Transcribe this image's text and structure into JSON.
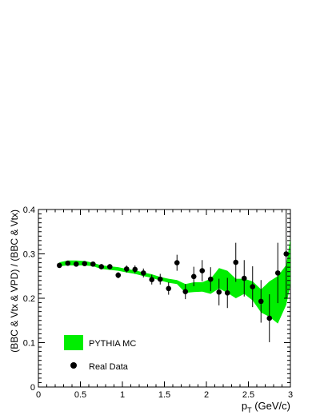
{
  "chart_data": {
    "type": "scatter",
    "xlabel_main": "p",
    "xlabel_sub": "T",
    "xlabel_unit": " (GeV/c)",
    "ylabel": "(BBC & Vtx & VPD) / (BBC & Vtx)",
    "xlim": [
      0,
      3
    ],
    "ylim": [
      0,
      0.4
    ],
    "x_ticks": [
      "0",
      "0.5",
      "1",
      "1.5",
      "2",
      "2.5",
      "3"
    ],
    "y_ticks": [
      "0",
      "0.1",
      "0.2",
      "0.3",
      "0.4"
    ],
    "legend": {
      "placement": "bottom-left",
      "entries": [
        {
          "label": "PYTHIA MC",
          "style": "band",
          "color": "#00ee00"
        },
        {
          "label": "Real Data",
          "style": "marker",
          "color": "#000000"
        }
      ]
    },
    "series": [
      {
        "name": "Real Data",
        "style": "points-with-errors",
        "color": "#000000",
        "points": [
          {
            "x": 0.25,
            "y": 0.274,
            "err": 0.004
          },
          {
            "x": 0.35,
            "y": 0.279,
            "err": 0.004
          },
          {
            "x": 0.45,
            "y": 0.277,
            "err": 0.004
          },
          {
            "x": 0.55,
            "y": 0.278,
            "err": 0.004
          },
          {
            "x": 0.65,
            "y": 0.277,
            "err": 0.005
          },
          {
            "x": 0.75,
            "y": 0.271,
            "err": 0.006
          },
          {
            "x": 0.85,
            "y": 0.271,
            "err": 0.006
          },
          {
            "x": 0.95,
            "y": 0.252,
            "err": 0.007
          },
          {
            "x": 1.05,
            "y": 0.266,
            "err": 0.008
          },
          {
            "x": 1.15,
            "y": 0.265,
            "err": 0.009
          },
          {
            "x": 1.25,
            "y": 0.257,
            "err": 0.01
          },
          {
            "x": 1.35,
            "y": 0.242,
            "err": 0.011
          },
          {
            "x": 1.45,
            "y": 0.243,
            "err": 0.012
          },
          {
            "x": 1.55,
            "y": 0.222,
            "err": 0.014
          },
          {
            "x": 1.65,
            "y": 0.28,
            "err": 0.018
          },
          {
            "x": 1.75,
            "y": 0.215,
            "err": 0.017
          },
          {
            "x": 1.85,
            "y": 0.249,
            "err": 0.022
          },
          {
            "x": 1.95,
            "y": 0.262,
            "err": 0.024
          },
          {
            "x": 2.05,
            "y": 0.243,
            "err": 0.027
          },
          {
            "x": 2.15,
            "y": 0.214,
            "err": 0.03
          },
          {
            "x": 2.25,
            "y": 0.212,
            "err": 0.034
          },
          {
            "x": 2.35,
            "y": 0.281,
            "err": 0.044
          },
          {
            "x": 2.45,
            "y": 0.245,
            "err": 0.041
          },
          {
            "x": 2.55,
            "y": 0.226,
            "err": 0.046
          },
          {
            "x": 2.65,
            "y": 0.193,
            "err": 0.048
          },
          {
            "x": 2.75,
            "y": 0.155,
            "err": 0.054
          },
          {
            "x": 2.85,
            "y": 0.257,
            "err": 0.068
          },
          {
            "x": 2.95,
            "y": 0.3,
            "err": 0.1
          }
        ]
      },
      {
        "name": "PYTHIA MC",
        "style": "band",
        "color": "#00ee00",
        "x": [
          0.25,
          0.35,
          0.45,
          0.55,
          0.65,
          0.75,
          0.85,
          0.95,
          1.05,
          1.15,
          1.25,
          1.35,
          1.45,
          1.55,
          1.65,
          1.75,
          1.85,
          1.95,
          2.05,
          2.15,
          2.25,
          2.35,
          2.45,
          2.55,
          2.65,
          2.75,
          2.85,
          2.95,
          3.0
        ],
        "lower": [
          0.272,
          0.274,
          0.274,
          0.274,
          0.272,
          0.266,
          0.264,
          0.262,
          0.258,
          0.255,
          0.25,
          0.246,
          0.24,
          0.235,
          0.232,
          0.212,
          0.214,
          0.215,
          0.21,
          0.222,
          0.212,
          0.2,
          0.21,
          0.195,
          0.168,
          0.158,
          0.143,
          0.185,
          0.23
        ],
        "upper": [
          0.281,
          0.285,
          0.285,
          0.284,
          0.28,
          0.274,
          0.272,
          0.27,
          0.266,
          0.263,
          0.258,
          0.254,
          0.248,
          0.244,
          0.241,
          0.232,
          0.236,
          0.236,
          0.244,
          0.268,
          0.262,
          0.244,
          0.244,
          0.238,
          0.22,
          0.238,
          0.25,
          0.275,
          0.335
        ]
      }
    ]
  }
}
